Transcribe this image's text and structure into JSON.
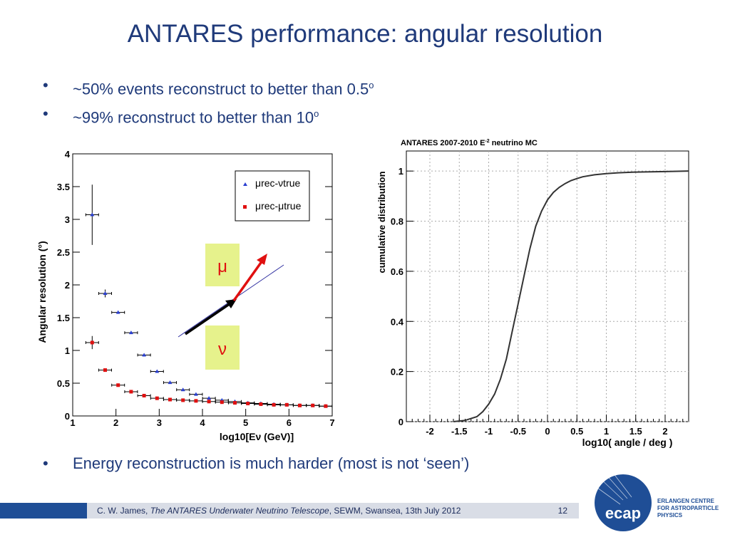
{
  "slide": {
    "title": "ANTARES performance: angular resolution",
    "bullets": [
      {
        "text": "~50% events reconstruct to better than 0.5",
        "sup": "o"
      },
      {
        "text": "~99% reconstruct to better than 10",
        "sup": "o"
      }
    ],
    "bullet3": "Energy reconstruction is much harder (most is not ‘seen’)",
    "bullet_char": "•"
  },
  "footer": {
    "author": "C. W. James,",
    "talk_title": "The ANTARES Underwater Neutrino Telescope",
    "venue": ", SEWM, Swansea, 13th July 2012",
    "page": "12"
  },
  "logo": {
    "abbrev": "ecap",
    "line1": "ERLANGEN CENTRE",
    "line2": "FOR ASTROPARTICLE",
    "line3": "PHYSICS",
    "color": "#1f4e96"
  },
  "chart_data": [
    {
      "type": "scatter",
      "title": "",
      "xlabel": "log10[Eν (GeV)]",
      "ylabel": "Angular resolution (°)",
      "xlim": [
        1,
        7
      ],
      "ylim": [
        0,
        4
      ],
      "xticks": [
        "1",
        "2",
        "3",
        "4",
        "5",
        "6",
        "7"
      ],
      "yticks": [
        "0",
        "0.5",
        "1",
        "1.5",
        "2",
        "2.5",
        "3",
        "3.5",
        "4"
      ],
      "legend": {
        "placement": "top-right",
        "entries": [
          "μrec-νtrue",
          "μrec-μtrue"
        ]
      },
      "annotations": [
        "μ",
        "ν"
      ],
      "series": [
        {
          "name": "μrec-νtrue",
          "color": "#2a3fd0",
          "x": [
            1.45,
            1.75,
            2.05,
            2.35,
            2.65,
            2.95,
            3.25,
            3.55,
            3.85,
            4.15,
            4.45,
            4.75,
            5.05,
            5.35,
            5.65,
            5.95,
            6.25,
            6.55,
            6.85
          ],
          "y": [
            3.07,
            1.87,
            1.58,
            1.27,
            0.93,
            0.68,
            0.51,
            0.4,
            0.33,
            0.27,
            0.24,
            0.22,
            0.2,
            0.19,
            0.18,
            0.17,
            0.16,
            0.16,
            0.15
          ]
        },
        {
          "name": "μrec-μtrue",
          "color": "#e01010",
          "x": [
            1.45,
            1.75,
            2.05,
            2.35,
            2.65,
            2.95,
            3.25,
            3.55,
            3.85,
            4.15,
            4.45,
            4.75,
            5.05,
            5.35,
            5.65,
            5.95,
            6.25,
            6.55,
            6.85
          ],
          "y": [
            1.12,
            0.7,
            0.47,
            0.37,
            0.31,
            0.27,
            0.25,
            0.24,
            0.23,
            0.22,
            0.21,
            0.2,
            0.19,
            0.18,
            0.17,
            0.17,
            0.16,
            0.16,
            0.15
          ]
        }
      ]
    },
    {
      "type": "line",
      "title": "ANTARES 2007-2010 E",
      "title_sup": "-2",
      "title_suffix": " neutrino MC",
      "xlabel": "log10( angle / deg )",
      "ylabel": "cumulative distribution",
      "xlim": [
        -2.4,
        2.4
      ],
      "ylim": [
        0,
        1.08
      ],
      "xticks": [
        "-2",
        "-1.5",
        "-1",
        "-0.5",
        "0",
        "0.5",
        "1",
        "1.5",
        "2"
      ],
      "yticks": [
        "0",
        "0.2",
        "0.4",
        "0.6",
        "0.8",
        "1"
      ],
      "grid": true,
      "series": [
        {
          "name": "",
          "x": [
            -1.6,
            -1.4,
            -1.2,
            -1.1,
            -1.0,
            -0.9,
            -0.8,
            -0.7,
            -0.6,
            -0.5,
            -0.4,
            -0.3,
            -0.2,
            -0.1,
            0.0,
            0.1,
            0.2,
            0.3,
            0.4,
            0.5,
            0.6,
            0.8,
            1.0,
            1.2,
            1.5,
            2.0,
            2.4
          ],
          "y": [
            0.0,
            0.005,
            0.02,
            0.04,
            0.07,
            0.11,
            0.17,
            0.25,
            0.36,
            0.47,
            0.58,
            0.69,
            0.78,
            0.84,
            0.885,
            0.915,
            0.935,
            0.95,
            0.962,
            0.97,
            0.977,
            0.985,
            0.99,
            0.993,
            0.996,
            0.998,
            1.0
          ]
        }
      ]
    }
  ]
}
